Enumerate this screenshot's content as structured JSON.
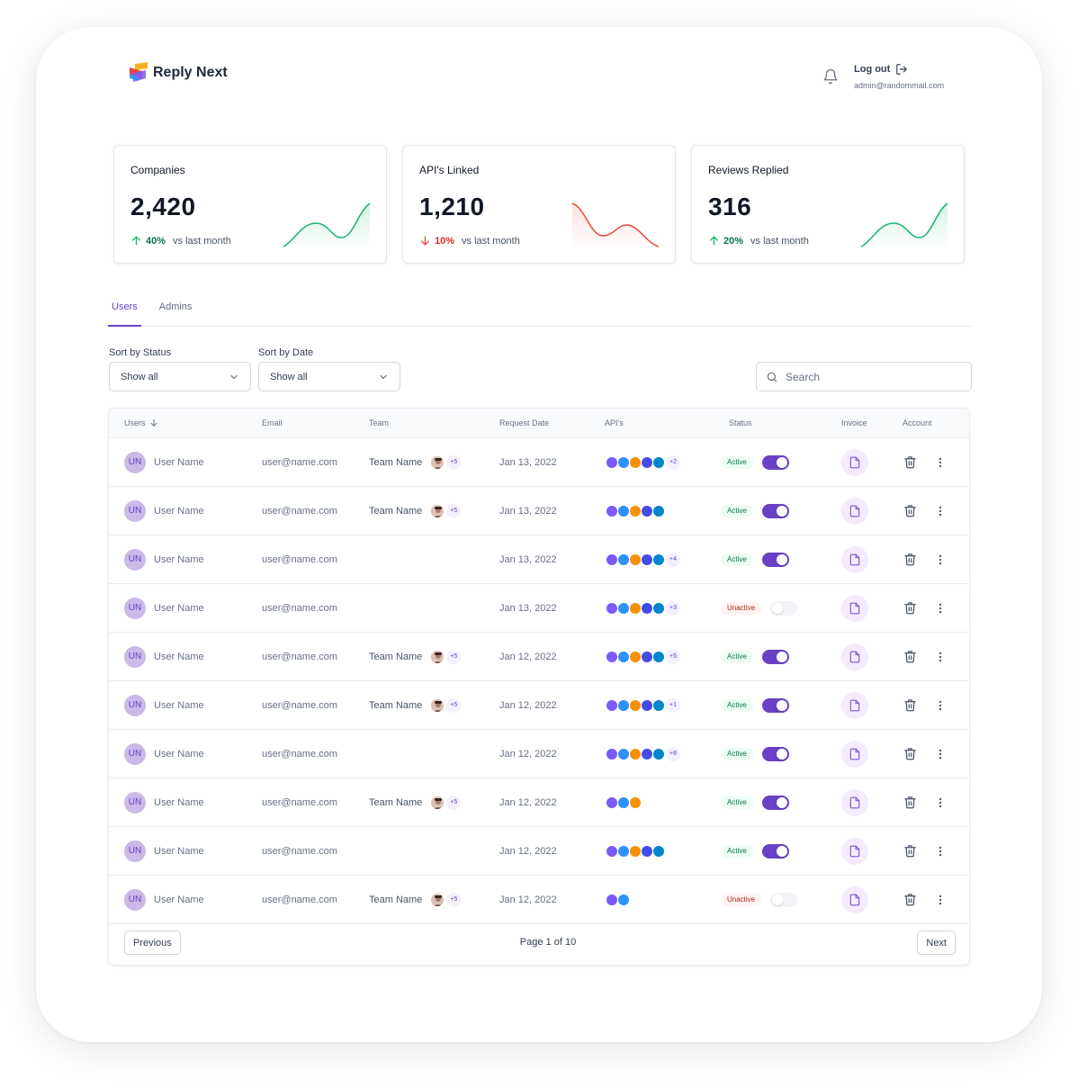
{
  "app": {
    "name": "Reply Next"
  },
  "header": {
    "logout_label": "Log out",
    "admin_email": "admin@randommail.com"
  },
  "colors": {
    "brand_purple": "#6941c6",
    "success": "#067647",
    "danger": "#d92d20"
  },
  "stats": [
    {
      "title": "Companies",
      "value": "2,420",
      "trend": "up",
      "pct": "40%",
      "label": "vs last month"
    },
    {
      "title": "API's Linked",
      "value": "1,210",
      "trend": "down",
      "pct": "10%",
      "label": "vs last month"
    },
    {
      "title": "Reviews Replied",
      "value": "316",
      "trend": "up",
      "pct": "20%",
      "label": "vs last month"
    }
  ],
  "tabs": [
    {
      "label": "Users",
      "active": true
    },
    {
      "label": "Admins",
      "active": false
    }
  ],
  "filters": {
    "status": {
      "label": "Sort by Status",
      "value": "Show all"
    },
    "date": {
      "label": "Sort by Date",
      "value": "Show all"
    }
  },
  "search": {
    "placeholder": "Search"
  },
  "table": {
    "columns": {
      "users": "Users",
      "email": "Email",
      "team": "Team",
      "date": "Request Date",
      "apis": "API's",
      "status": "Status",
      "invoice": "Invoice",
      "account": "Account"
    },
    "rows": [
      {
        "initials": "UN",
        "name": "User Name",
        "email": "user@name.com",
        "team": "Team Name",
        "team_more": "+5",
        "date": "Jan 13, 2022",
        "api_count": 5,
        "api_more": "+2",
        "status": "Active",
        "on": true
      },
      {
        "initials": "UN",
        "name": "User Name",
        "email": "user@name.com",
        "team": "Team Name",
        "team_more": "+5",
        "date": "Jan 13, 2022",
        "api_count": 5,
        "api_more": "",
        "status": "Active",
        "on": true
      },
      {
        "initials": "UN",
        "name": "User Name",
        "email": "user@name.com",
        "team": "",
        "team_more": "",
        "date": "Jan 13, 2022",
        "api_count": 5,
        "api_more": "+4",
        "status": "Active",
        "on": true
      },
      {
        "initials": "UN",
        "name": "User Name",
        "email": "user@name.com",
        "team": "",
        "team_more": "",
        "date": "Jan 13, 2022",
        "api_count": 5,
        "api_more": "+3",
        "status": "Unactive",
        "on": false
      },
      {
        "initials": "UN",
        "name": "User Name",
        "email": "user@name.com",
        "team": "Team Name",
        "team_more": "+5",
        "date": "Jan 12, 2022",
        "api_count": 5,
        "api_more": "+5",
        "status": "Active",
        "on": true
      },
      {
        "initials": "UN",
        "name": "User Name",
        "email": "user@name.com",
        "team": "Team Name",
        "team_more": "+5",
        "date": "Jan 12, 2022",
        "api_count": 5,
        "api_more": "+1",
        "status": "Active",
        "on": true
      },
      {
        "initials": "UN",
        "name": "User Name",
        "email": "user@name.com",
        "team": "",
        "team_more": "",
        "date": "Jan 12, 2022",
        "api_count": 5,
        "api_more": "+8",
        "status": "Active",
        "on": true
      },
      {
        "initials": "UN",
        "name": "User Name",
        "email": "user@name.com",
        "team": "Team Name",
        "team_more": "+5",
        "date": "Jan 12, 2022",
        "api_count": 3,
        "api_more": "",
        "status": "Active",
        "on": true
      },
      {
        "initials": "UN",
        "name": "User Name",
        "email": "user@name.com",
        "team": "",
        "team_more": "",
        "date": "Jan 12, 2022",
        "api_count": 5,
        "api_more": "",
        "status": "Active",
        "on": true
      },
      {
        "initials": "UN",
        "name": "User Name",
        "email": "user@name.com",
        "team": "Team Name",
        "team_more": "+5",
        "date": "Jan 12, 2022",
        "api_count": 2,
        "api_more": "",
        "status": "Unactive",
        "on": false
      }
    ]
  },
  "pagination": {
    "previous": "Previous",
    "next": "Next",
    "info": "Page 1 of 10"
  }
}
